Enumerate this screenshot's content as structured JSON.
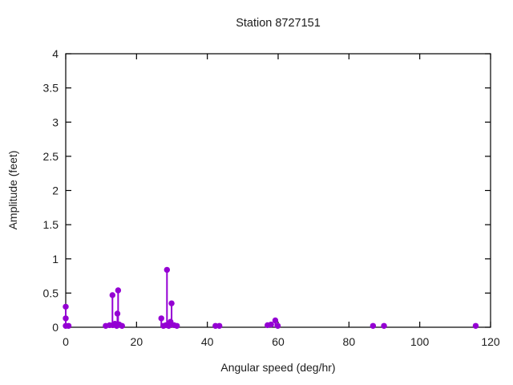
{
  "chart_data": {
    "type": "scatter",
    "style": "impulses+points",
    "title": "Station 8727151",
    "xlabel": "Angular speed (deg/hr)",
    "ylabel": "Amplitude (feet)",
    "xlim": [
      0,
      120
    ],
    "ylim": [
      0,
      4
    ],
    "xticks": [
      0,
      20,
      40,
      60,
      80,
      100,
      120
    ],
    "yticks": [
      0,
      0.5,
      1,
      1.5,
      2,
      2.5,
      3,
      3.5,
      4
    ],
    "grid": false,
    "legend": "none",
    "marker_color": "#9400d3",
    "axis_color": "#000000",
    "points": [
      [
        0,
        0.3
      ],
      [
        0,
        0.13
      ],
      [
        0,
        0.02
      ],
      [
        0.8,
        0.02
      ],
      [
        11.3,
        0.02
      ],
      [
        12.4,
        0.03
      ],
      [
        13.2,
        0.47
      ],
      [
        13.3,
        0.03
      ],
      [
        13.9,
        0.05
      ],
      [
        14.4,
        0.02
      ],
      [
        14.6,
        0.2
      ],
      [
        14.8,
        0.54
      ],
      [
        15.1,
        0.04
      ],
      [
        15.9,
        0.02
      ],
      [
        27.0,
        0.13
      ],
      [
        27.6,
        0.02
      ],
      [
        28.3,
        0.03
      ],
      [
        28.6,
        0.84
      ],
      [
        29.1,
        0.02
      ],
      [
        29.6,
        0.08
      ],
      [
        29.9,
        0.35
      ],
      [
        30.6,
        0.03
      ],
      [
        31.4,
        0.02
      ],
      [
        42.3,
        0.02
      ],
      [
        43.4,
        0.02
      ],
      [
        57.0,
        0.03
      ],
      [
        58.0,
        0.04
      ],
      [
        59.2,
        0.1
      ],
      [
        59.9,
        0.02
      ],
      [
        86.8,
        0.02
      ],
      [
        89.9,
        0.02
      ],
      [
        115.8,
        0.02
      ]
    ]
  }
}
